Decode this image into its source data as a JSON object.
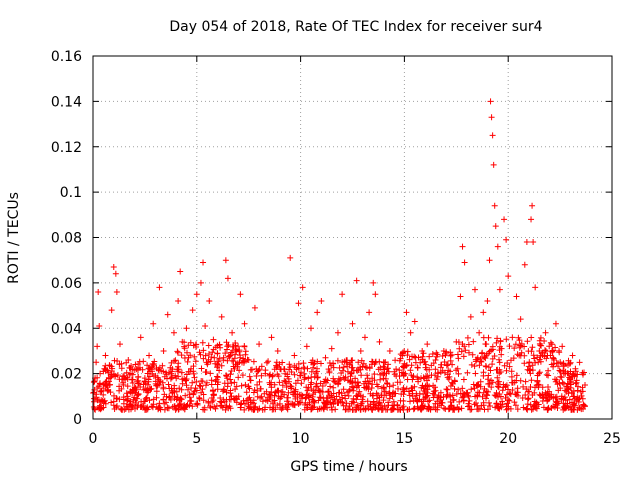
{
  "chart_data": {
    "type": "scatter",
    "title": "Day 054 of 2018, Rate Of TEC Index for receiver sur4",
    "xlabel": "GPS time / hours",
    "ylabel": "ROTI / TECUs",
    "xlim": [
      0,
      25
    ],
    "ylim": [
      0,
      0.16
    ],
    "xticks": [
      0,
      5,
      10,
      15,
      20,
      25
    ],
    "xtick_labels": [
      "0",
      "5",
      "10",
      "15",
      "20",
      "25"
    ],
    "yticks": [
      0,
      0.02,
      0.04,
      0.06,
      0.08,
      0.1,
      0.12,
      0.14,
      0.16
    ],
    "ytick_labels": [
      "0",
      "0.02",
      "0.04",
      "0.06",
      "0.08",
      "0.1",
      "0.12",
      "0.14",
      "0.16"
    ],
    "grid": true,
    "marker": "+",
    "color": "#ff0000",
    "series": [
      {
        "name": "ROTI",
        "points": [
          [
            0.05,
            0.009
          ],
          [
            0.1,
            0.018
          ],
          [
            0.15,
            0.025
          ],
          [
            0.2,
            0.032
          ],
          [
            0.25,
            0.056
          ],
          [
            0.3,
            0.041
          ],
          [
            0.35,
            0.012
          ],
          [
            0.5,
            0.021
          ],
          [
            0.6,
            0.028
          ],
          [
            0.8,
            0.015
          ],
          [
            0.9,
            0.048
          ],
          [
            1.0,
            0.067
          ],
          [
            1.1,
            0.064
          ],
          [
            1.15,
            0.056
          ],
          [
            1.3,
            0.033
          ],
          [
            1.5,
            0.019
          ],
          [
            1.7,
            0.026
          ],
          [
            1.9,
            0.013
          ],
          [
            2.1,
            0.022
          ],
          [
            2.3,
            0.036
          ],
          [
            2.5,
            0.018
          ],
          [
            2.7,
            0.028
          ],
          [
            2.9,
            0.042
          ],
          [
            3.1,
            0.015
          ],
          [
            3.2,
            0.058
          ],
          [
            3.4,
            0.03
          ],
          [
            3.6,
            0.046
          ],
          [
            3.8,
            0.021
          ],
          [
            3.9,
            0.038
          ],
          [
            4.1,
            0.052
          ],
          [
            4.2,
            0.065
          ],
          [
            4.3,
            0.034
          ],
          [
            4.5,
            0.04
          ],
          [
            4.6,
            0.027
          ],
          [
            4.8,
            0.048
          ],
          [
            5.0,
            0.055
          ],
          [
            5.2,
            0.06
          ],
          [
            5.3,
            0.069
          ],
          [
            5.4,
            0.041
          ],
          [
            5.6,
            0.052
          ],
          [
            5.8,
            0.035
          ],
          [
            6.0,
            0.024
          ],
          [
            6.2,
            0.045
          ],
          [
            6.4,
            0.07
          ],
          [
            6.5,
            0.062
          ],
          [
            6.7,
            0.038
          ],
          [
            6.9,
            0.03
          ],
          [
            7.1,
            0.055
          ],
          [
            7.3,
            0.042
          ],
          [
            7.5,
            0.026
          ],
          [
            7.8,
            0.049
          ],
          [
            8.0,
            0.033
          ],
          [
            8.3,
            0.02
          ],
          [
            8.6,
            0.036
          ],
          [
            8.9,
            0.03
          ],
          [
            9.2,
            0.022
          ],
          [
            9.5,
            0.071
          ],
          [
            9.7,
            0.028
          ],
          [
            9.9,
            0.051
          ],
          [
            10.1,
            0.058
          ],
          [
            10.3,
            0.032
          ],
          [
            10.5,
            0.04
          ],
          [
            10.8,
            0.047
          ],
          [
            11.0,
            0.052
          ],
          [
            11.2,
            0.027
          ],
          [
            11.5,
            0.031
          ],
          [
            11.8,
            0.038
          ],
          [
            12.0,
            0.055
          ],
          [
            12.2,
            0.025
          ],
          [
            12.5,
            0.042
          ],
          [
            12.7,
            0.061
          ],
          [
            12.9,
            0.03
          ],
          [
            13.1,
            0.036
          ],
          [
            13.3,
            0.047
          ],
          [
            13.5,
            0.06
          ],
          [
            13.6,
            0.055
          ],
          [
            13.8,
            0.034
          ],
          [
            14.0,
            0.025
          ],
          [
            14.3,
            0.03
          ],
          [
            14.6,
            0.022
          ],
          [
            14.9,
            0.028
          ],
          [
            15.1,
            0.047
          ],
          [
            15.3,
            0.038
          ],
          [
            15.5,
            0.043
          ],
          [
            15.8,
            0.018
          ],
          [
            16.1,
            0.033
          ],
          [
            16.5,
            0.026
          ],
          [
            16.9,
            0.03
          ],
          [
            17.2,
            0.021
          ],
          [
            17.5,
            0.034
          ],
          [
            17.7,
            0.054
          ],
          [
            17.8,
            0.076
          ],
          [
            17.9,
            0.069
          ],
          [
            18.2,
            0.045
          ],
          [
            18.4,
            0.057
          ],
          [
            18.6,
            0.038
          ],
          [
            18.8,
            0.047
          ],
          [
            19.0,
            0.052
          ],
          [
            19.1,
            0.07
          ],
          [
            19.15,
            0.14
          ],
          [
            19.2,
            0.133
          ],
          [
            19.25,
            0.125
          ],
          [
            19.3,
            0.112
          ],
          [
            19.35,
            0.094
          ],
          [
            19.4,
            0.085
          ],
          [
            19.5,
            0.076
          ],
          [
            19.6,
            0.057
          ],
          [
            19.8,
            0.088
          ],
          [
            19.9,
            0.079
          ],
          [
            20.0,
            0.063
          ],
          [
            20.2,
            0.036
          ],
          [
            20.4,
            0.054
          ],
          [
            20.6,
            0.044
          ],
          [
            20.8,
            0.068
          ],
          [
            20.9,
            0.078
          ],
          [
            21.1,
            0.088
          ],
          [
            21.15,
            0.094
          ],
          [
            21.2,
            0.078
          ],
          [
            21.3,
            0.058
          ],
          [
            21.5,
            0.03
          ],
          [
            21.8,
            0.038
          ],
          [
            22.1,
            0.024
          ],
          [
            22.3,
            0.042
          ],
          [
            22.6,
            0.032
          ],
          [
            22.9,
            0.02
          ],
          [
            23.1,
            0.028
          ],
          [
            23.3,
            0.017
          ],
          [
            23.5,
            0.012
          ],
          [
            23.7,
            0.015
          ]
        ]
      }
    ]
  }
}
